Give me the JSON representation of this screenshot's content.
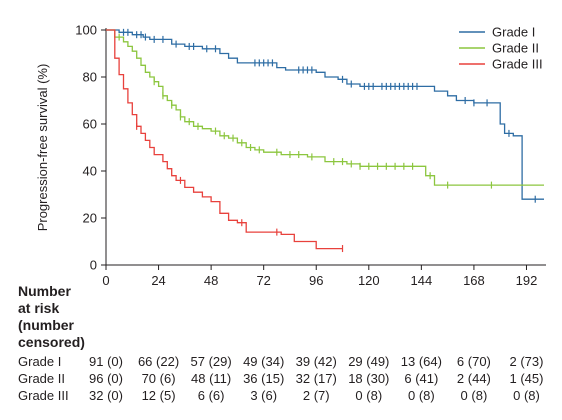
{
  "chart_data": {
    "type": "line",
    "title": "",
    "xlabel": "",
    "ylabel": "Progression-free survival (%)",
    "xlim": [
      0,
      200
    ],
    "ylim": [
      0,
      100
    ],
    "xticks": [
      0,
      24,
      48,
      72,
      96,
      120,
      144,
      168,
      192
    ],
    "yticks": [
      0,
      20,
      40,
      60,
      80,
      100
    ],
    "grid": false,
    "legend_position": "top-right",
    "series": [
      {
        "name": "Grade I",
        "color": "#2e6da4",
        "x": [
          0,
          6,
          12,
          17,
          20,
          24,
          30,
          36,
          44,
          52,
          56,
          60,
          64,
          78,
          82,
          86,
          96,
          100,
          106,
          110,
          116,
          144,
          150,
          156,
          160,
          168,
          176,
          180,
          182,
          186,
          190,
          194,
          200
        ],
        "y": [
          100,
          99,
          98,
          97,
          96,
          96,
          94,
          93,
          92,
          90,
          88,
          86,
          86,
          84,
          83,
          83,
          82,
          80,
          79,
          77,
          76,
          76,
          74,
          72,
          70,
          69,
          69,
          60,
          56,
          55,
          28,
          28,
          28
        ],
        "censor_x": [
          8,
          10,
          14,
          16,
          18,
          22,
          26,
          32,
          38,
          40,
          46,
          50,
          68,
          70,
          72,
          74,
          76,
          88,
          90,
          92,
          94,
          108,
          112,
          118,
          120,
          122,
          126,
          128,
          130,
          132,
          134,
          136,
          138,
          140,
          142,
          164,
          168,
          174,
          184,
          196
        ]
      },
      {
        "name": "Grade II",
        "color": "#8cc63f",
        "x": [
          0,
          4,
          8,
          10,
          12,
          14,
          16,
          18,
          20,
          22,
          24,
          26,
          28,
          30,
          32,
          34,
          36,
          40,
          44,
          48,
          52,
          56,
          60,
          64,
          68,
          72,
          80,
          92,
          100,
          110,
          116,
          144,
          146,
          150,
          200
        ],
        "y": [
          100,
          97,
          95,
          93,
          91,
          88,
          85,
          82,
          80,
          78,
          76,
          72,
          70,
          68,
          66,
          63,
          61,
          59,
          58,
          57,
          55,
          54,
          52,
          50,
          49,
          48,
          47,
          46,
          44,
          43,
          42,
          42,
          38,
          34,
          34
        ],
        "censor_x": [
          6,
          22,
          26,
          30,
          34,
          38,
          42,
          50,
          54,
          58,
          62,
          66,
          70,
          78,
          84,
          88,
          94,
          104,
          108,
          112,
          116,
          120,
          124,
          128,
          132,
          136,
          140,
          148,
          156,
          176
        ]
      },
      {
        "name": "Grade III",
        "color": "#e8413c",
        "x": [
          0,
          4,
          6,
          8,
          10,
          12,
          14,
          16,
          18,
          20,
          22,
          26,
          28,
          30,
          32,
          36,
          40,
          44,
          48,
          52,
          56,
          60,
          64,
          76,
          80,
          86,
          96,
          104,
          108
        ],
        "y": [
          100,
          88,
          81,
          75,
          69,
          64,
          59,
          56,
          53,
          50,
          47,
          44,
          41,
          38,
          36,
          33,
          31,
          29,
          27,
          22,
          19,
          18,
          14,
          14,
          13,
          10,
          7,
          7,
          7
        ],
        "censor_x": [
          14,
          34,
          62,
          78,
          108
        ]
      }
    ]
  },
  "risk_table": {
    "title_lines": [
      "Number",
      "at risk",
      "(number",
      "censored)"
    ],
    "rows": [
      {
        "label": "Grade I",
        "cells": [
          "91 (0)",
          "66 (22)",
          "57 (29)",
          "49 (34)",
          "39 (42)",
          "29 (49)",
          "13 (64)",
          "6 (70)",
          "2 (73)"
        ]
      },
      {
        "label": "Grade II",
        "cells": [
          "96 (0)",
          "70 (6)",
          "48 (11)",
          "36 (15)",
          "32 (17)",
          "18 (30)",
          "6 (41)",
          "2 (44)",
          "1 (45)"
        ]
      },
      {
        "label": "Grade III",
        "cells": [
          "32 (0)",
          "12 (5)",
          "6 (6)",
          "3 (6)",
          "2 (7)",
          "0 (8)",
          "0 (8)",
          "0 (8)",
          "0 (8)"
        ]
      }
    ]
  }
}
